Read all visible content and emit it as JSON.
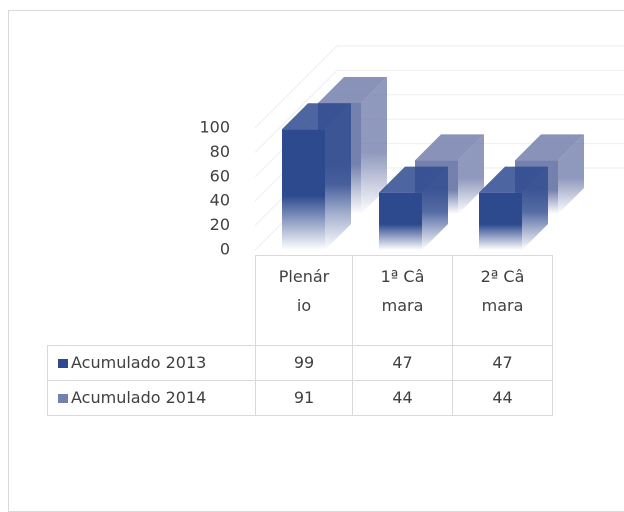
{
  "chart_data": {
    "type": "bar3d",
    "categories": [
      "Plenário",
      "1ª Câmara",
      "2ª Câmara"
    ],
    "series": [
      {
        "name": "Acumulado 2013",
        "color": "#2e4a8f",
        "values": [
          99,
          47,
          47
        ]
      },
      {
        "name": "Acumulado 2014",
        "color": "#7480ad",
        "values": [
          91,
          44,
          44
        ]
      }
    ],
    "ylim": [
      0,
      100
    ],
    "yticks": [
      0,
      20,
      40,
      60,
      80,
      100
    ],
    "grid": true,
    "data_table": true
  }
}
